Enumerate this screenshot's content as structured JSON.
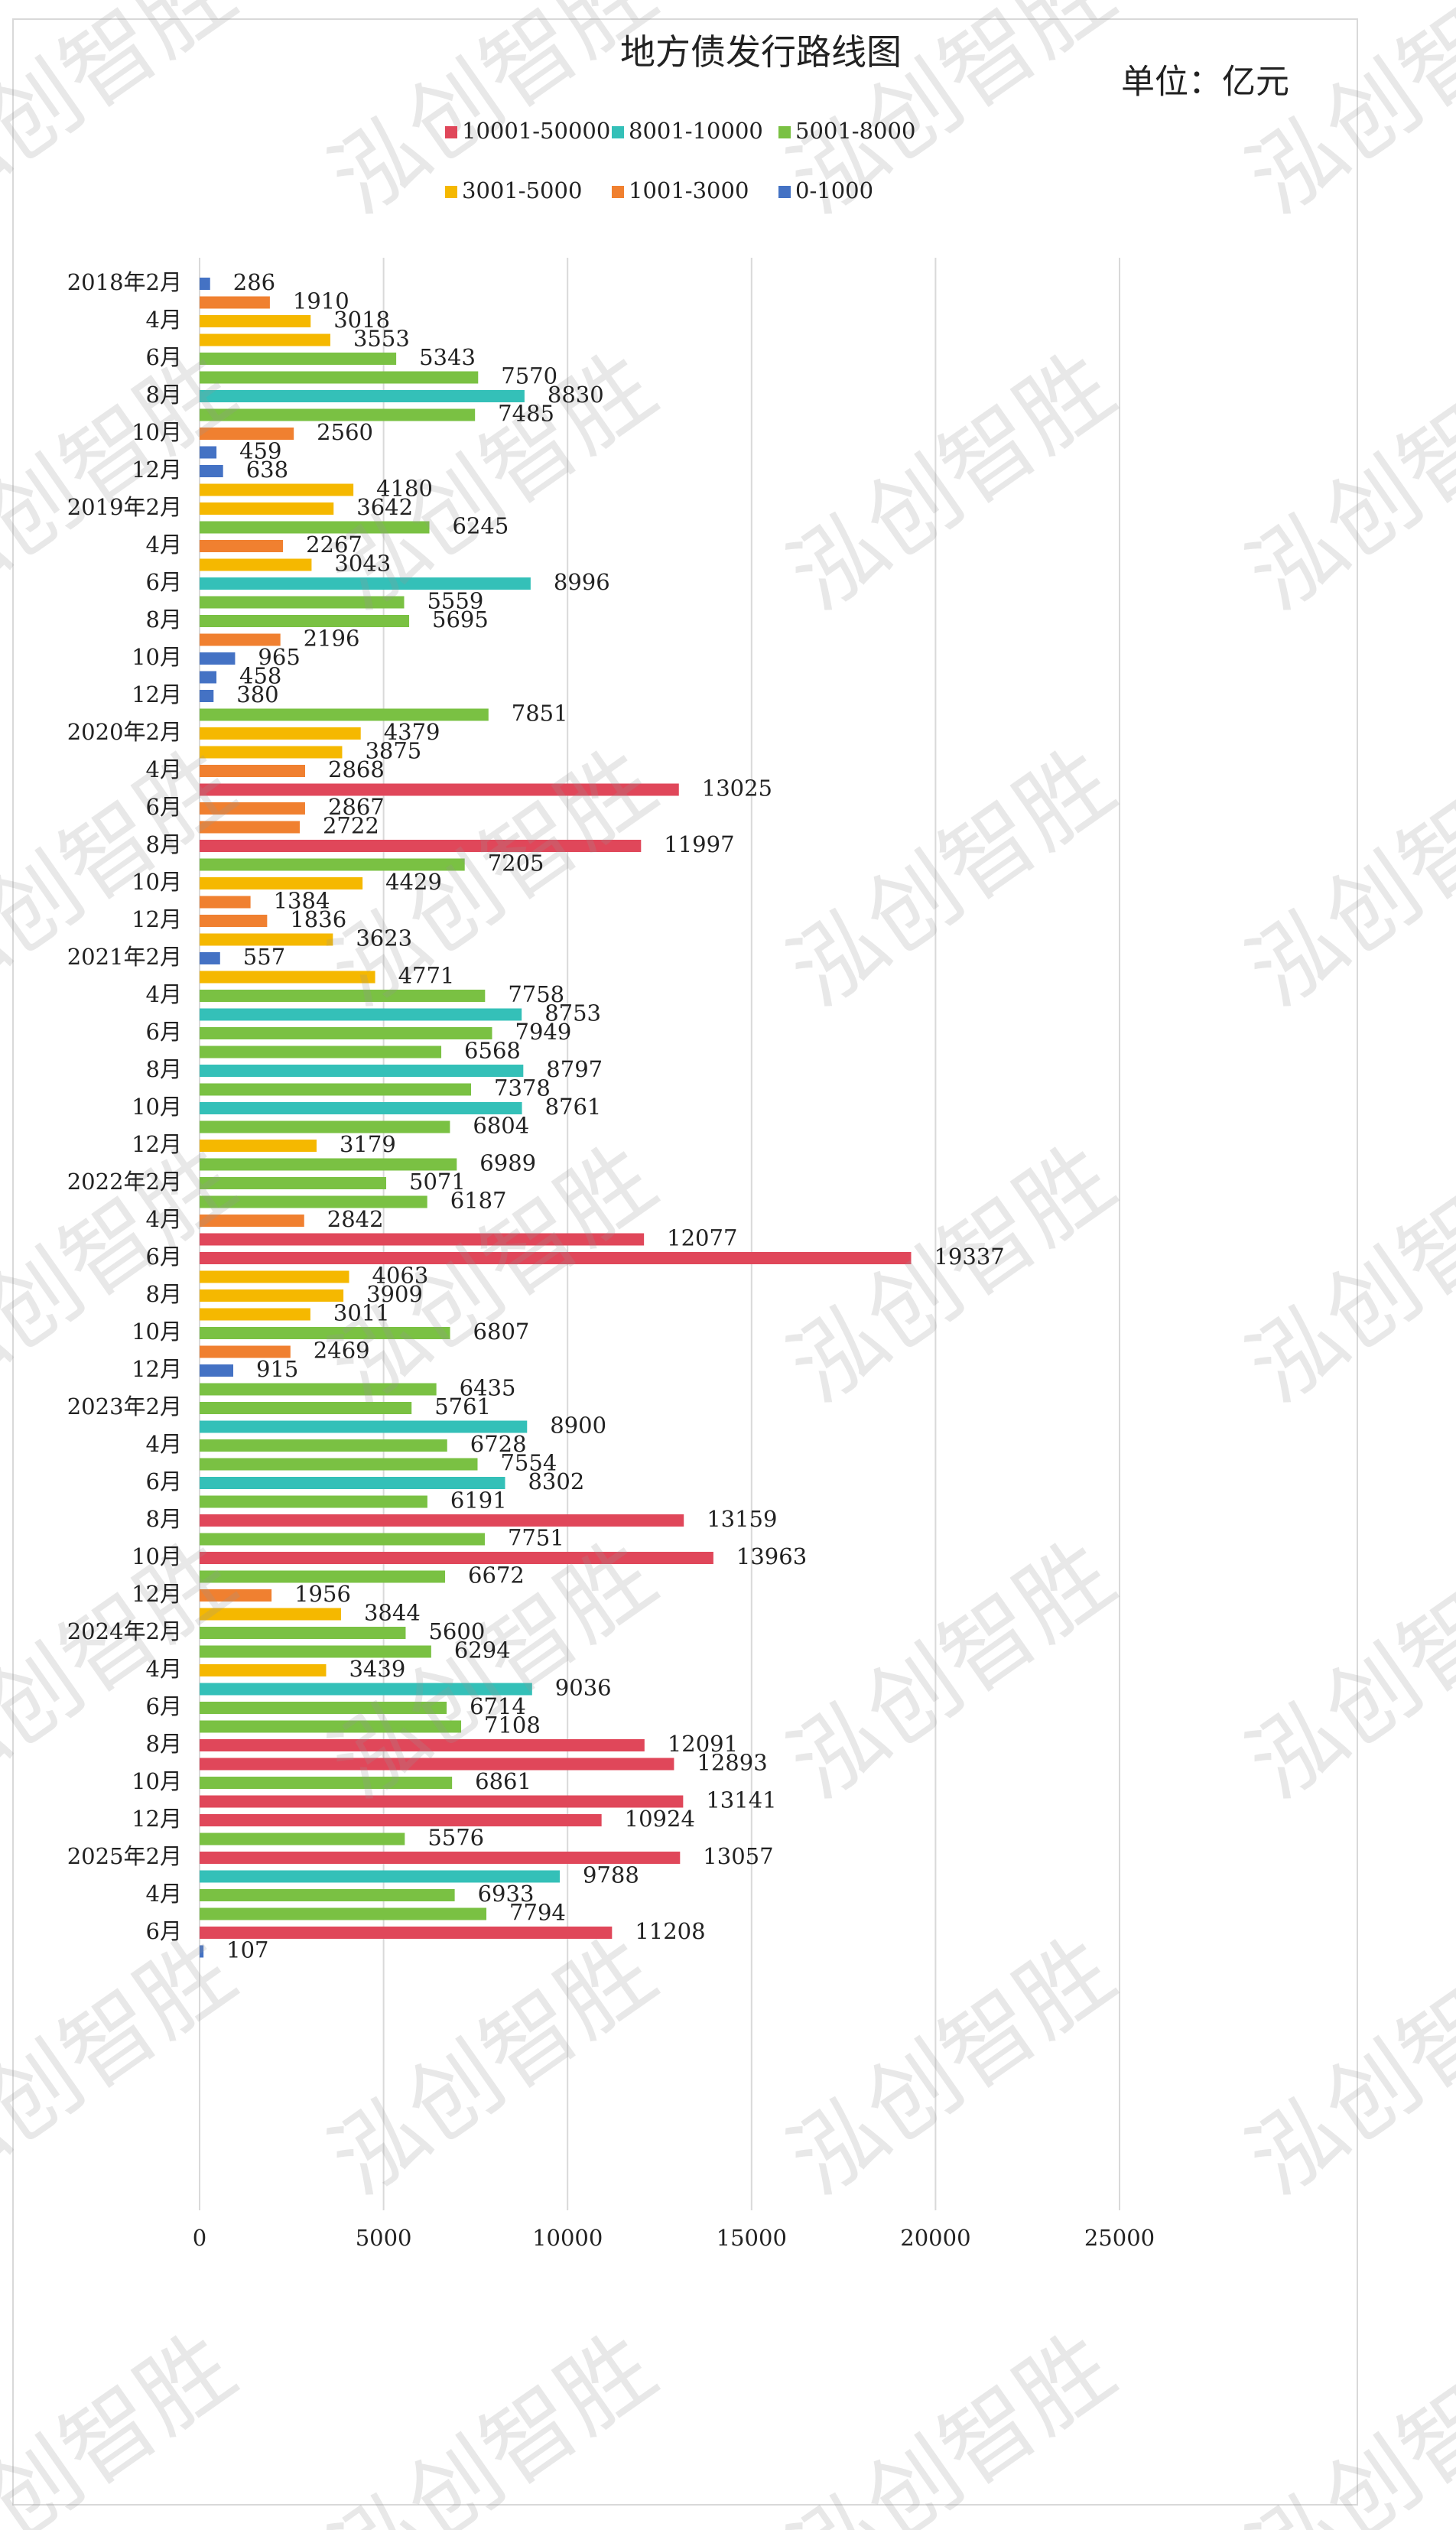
{
  "chart_data": {
    "type": "bar",
    "orientation": "horizontal",
    "title": "地方债发行路线图",
    "unit_label": "单位：亿元",
    "watermark": "泓创智胜",
    "legend": [
      {
        "name": "10001-50000",
        "color": "#e0475a"
      },
      {
        "name": "8001-10000",
        "color": "#34c0b8"
      },
      {
        "name": "5001-8000",
        "color": "#7ac143"
      },
      {
        "name": "3001-5000",
        "color": "#f5b800"
      },
      {
        "name": "1001-3000",
        "color": "#f08030"
      },
      {
        "name": "0-1000",
        "color": "#4472c4"
      }
    ],
    "categories": [
      "2018年2月",
      null,
      "4月",
      null,
      "6月",
      null,
      "8月",
      null,
      "10月",
      null,
      "12月",
      null,
      "2019年2月",
      null,
      "4月",
      null,
      "6月",
      null,
      "8月",
      null,
      "10月",
      null,
      "12月",
      null,
      "2020年2月",
      null,
      "4月",
      null,
      "6月",
      null,
      "8月",
      null,
      "10月",
      null,
      "12月",
      null,
      "2021年2月",
      null,
      "4月",
      null,
      "6月",
      null,
      "8月",
      null,
      "10月",
      null,
      "12月",
      null,
      "2022年2月",
      null,
      "4月",
      null,
      "6月",
      null,
      "8月",
      null,
      "10月",
      null,
      "12月",
      null,
      "2023年2月",
      null,
      "4月",
      null,
      "6月",
      null,
      "8月",
      null,
      "10月",
      null,
      "12月",
      null,
      "2024年2月",
      null,
      "4月",
      null,
      "6月",
      null,
      "8月",
      null,
      "10月",
      null,
      "12月",
      null,
      "2025年2月",
      null,
      "4月",
      null,
      "6月",
      null
    ],
    "values": [
      286,
      1910,
      3018,
      3553,
      5343,
      7570,
      8830,
      7485,
      2560,
      459,
      638,
      4180,
      3642,
      6245,
      2267,
      3043,
      8996,
      5559,
      5695,
      2196,
      965,
      458,
      380,
      7851,
      4379,
      3875,
      2868,
      13025,
      2867,
      2722,
      11997,
      7205,
      4429,
      1384,
      1836,
      3623,
      557,
      4771,
      7758,
      8753,
      7949,
      6568,
      8797,
      7378,
      8761,
      6804,
      3179,
      6989,
      5071,
      6187,
      2842,
      12077,
      19337,
      4063,
      3909,
      3011,
      6807,
      2469,
      915,
      6435,
      5761,
      8900,
      6728,
      7554,
      8302,
      6191,
      13159,
      7751,
      13963,
      6672,
      1956,
      3844,
      5600,
      6294,
      3439,
      9036,
      6714,
      7108,
      12091,
      12893,
      6861,
      13141,
      10924,
      5576,
      13057,
      9788,
      6933,
      7794,
      11208,
      107
    ],
    "bar_colors": [
      "#4472c4",
      "#f08030",
      "#f5b800",
      "#f5b800",
      "#7ac143",
      "#7ac143",
      "#34c0b8",
      "#7ac143",
      "#f08030",
      "#4472c4",
      "#4472c4",
      "#f5b800",
      "#f5b800",
      "#7ac143",
      "#f08030",
      "#f5b800",
      "#34c0b8",
      "#7ac143",
      "#7ac143",
      "#f08030",
      "#4472c4",
      "#4472c4",
      "#4472c4",
      "#7ac143",
      "#f5b800",
      "#f5b800",
      "#f08030",
      "#e0475a",
      "#f08030",
      "#f08030",
      "#e0475a",
      "#7ac143",
      "#f5b800",
      "#f08030",
      "#f08030",
      "#f5b800",
      "#4472c4",
      "#f5b800",
      "#7ac143",
      "#34c0b8",
      "#7ac143",
      "#7ac143",
      "#34c0b8",
      "#7ac143",
      "#34c0b8",
      "#7ac143",
      "#f5b800",
      "#7ac143",
      "#7ac143",
      "#7ac143",
      "#f08030",
      "#e0475a",
      "#e0475a",
      "#f5b800",
      "#f5b800",
      "#f5b800",
      "#7ac143",
      "#f08030",
      "#4472c4",
      "#7ac143",
      "#7ac143",
      "#34c0b8",
      "#7ac143",
      "#7ac143",
      "#34c0b8",
      "#7ac143",
      "#e0475a",
      "#7ac143",
      "#e0475a",
      "#7ac143",
      "#f08030",
      "#f5b800",
      "#7ac143",
      "#7ac143",
      "#f5b800",
      "#34c0b8",
      "#7ac143",
      "#7ac143",
      "#e0475a",
      "#e0475a",
      "#7ac143",
      "#e0475a",
      "#e0475a",
      "#7ac143",
      "#e0475a",
      "#34c0b8",
      "#7ac143",
      "#7ac143",
      "#e0475a",
      "#4472c4"
    ],
    "xlim": [
      0,
      25000
    ],
    "xticks": [
      0,
      5000,
      10000,
      15000,
      20000,
      25000
    ],
    "grid": true
  }
}
